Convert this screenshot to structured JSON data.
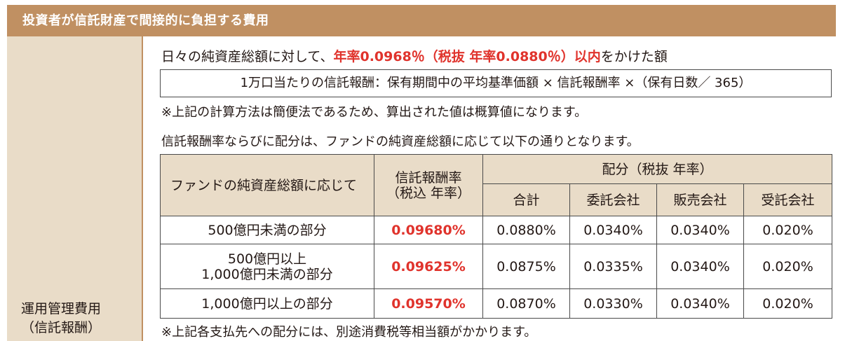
{
  "header": {
    "title": "投資者が信託財産で間接的に負担する費用"
  },
  "left": {
    "label_line1": "運用管理費用",
    "label_line2": "（信託報酬）"
  },
  "body": {
    "line1_prefix": "日々の純資産総額に対して、",
    "line1_highlight": "年率0.0968％（税抜 年率0.0880％）以内",
    "line1_suffix": "をかけた額",
    "formula": "1万口当たりの信託報酬：保有期間中の平均基準価額 × 信託報酬率 ×（保有日数／ 365）",
    "note1": "※上記の計算方法は簡便法であるため、算出された値は概算値になります。",
    "line4": "信託報酬率ならびに配分は、ファンドの純資産総額に応じて以下の通りとなります。",
    "note2": "※上記各支払先への配分には、別途消費税等相当額がかかります。"
  },
  "table": {
    "headers": {
      "amount": "ファンドの純資産総額に応じて",
      "rate_line1": "信託報酬率",
      "rate_line2": "（税込 年率）",
      "allocation": "配分（税抜 年率）",
      "total": "合計",
      "trustor": "委託会社",
      "distributor": "販売会社",
      "trustee": "受託会社"
    },
    "rows": [
      {
        "amount_line1": "500億円未満の部分",
        "amount_line2": "",
        "rate": "0.09680%",
        "total": "0.0880%",
        "trustor": "0.0340%",
        "distributor": "0.0340%",
        "trustee": "0.020%"
      },
      {
        "amount_line1": "500億円以上",
        "amount_line2": "1,000億円未満の部分",
        "rate": "0.09625%",
        "total": "0.0875%",
        "trustor": "0.0335%",
        "distributor": "0.0340%",
        "trustee": "0.020%"
      },
      {
        "amount_line1": "1,000億円以上の部分",
        "amount_line2": "",
        "rate": "0.09570%",
        "total": "0.0870%",
        "trustor": "0.0330%",
        "distributor": "0.0340%",
        "trustee": "0.020%"
      }
    ]
  }
}
